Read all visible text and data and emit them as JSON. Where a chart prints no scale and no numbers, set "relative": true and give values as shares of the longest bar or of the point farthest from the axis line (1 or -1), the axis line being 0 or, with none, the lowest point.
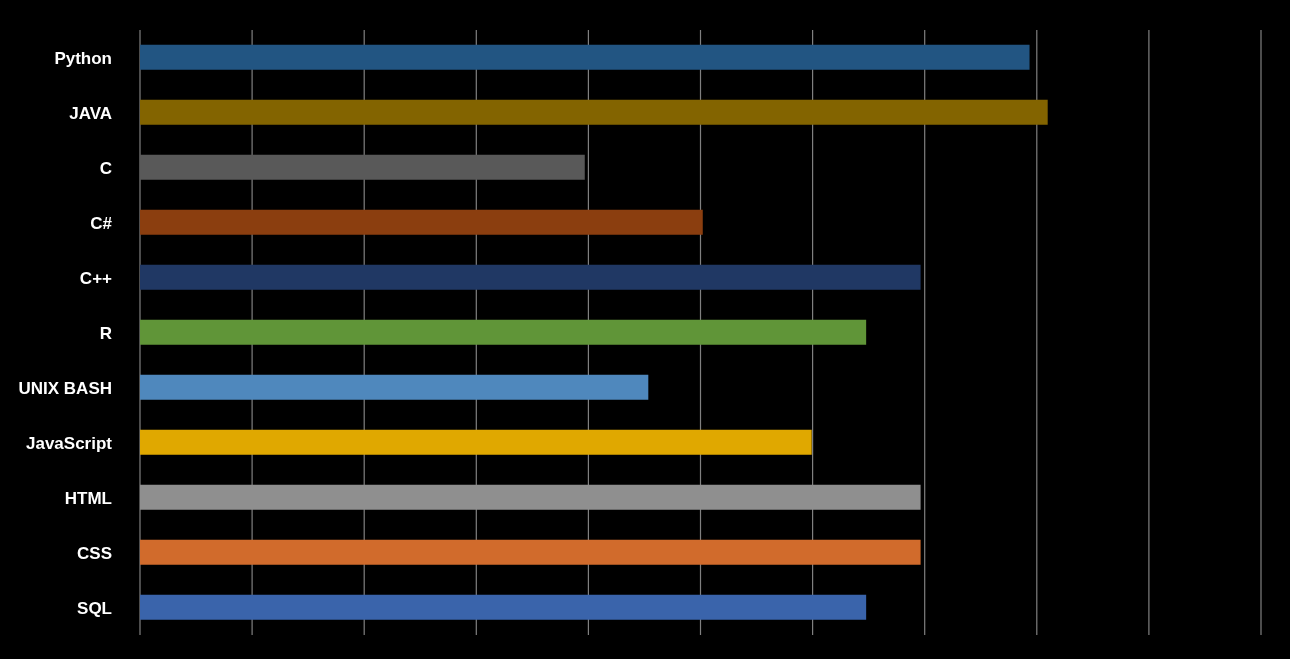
{
  "chart_data": {
    "type": "bar",
    "orientation": "horizontal",
    "relative": true,
    "grid": "x",
    "categories": [
      "Python",
      "JAVA",
      "C",
      "C#",
      "C++",
      "R",
      "UNIX BASH",
      "JavaScript",
      "HTML",
      "CSS",
      "SQL"
    ],
    "values": [
      0.98,
      1,
      0.49,
      0.62,
      0.86,
      0.8,
      0.56,
      0.74,
      0.86,
      0.86,
      0.8
    ],
    "colors": [
      "#225582",
      "#836400",
      "#595959",
      "#8b3e0f",
      "#203864",
      "#609538",
      "#4f88bd",
      "#e0a800",
      "#8f8f8f",
      "#d16b2c",
      "#3a64ab"
    ]
  }
}
